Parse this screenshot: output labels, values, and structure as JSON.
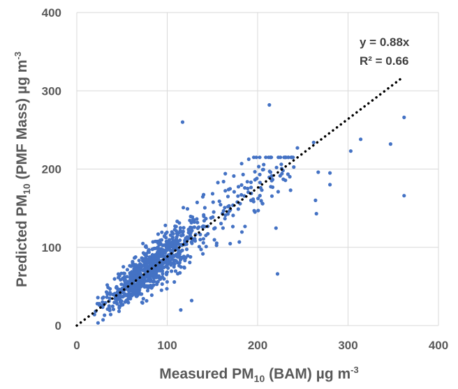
{
  "chart_data": {
    "type": "scatter",
    "xlabel": {
      "main": "Measured PM",
      "sub": "10",
      "rest": " (BAM) µg m",
      "sup": "-3"
    },
    "ylabel": {
      "main": "Predicted PM",
      "sub": "10",
      "rest": " (PMF Mass) µg m",
      "sup": "-3"
    },
    "xlim": [
      0,
      400
    ],
    "ylim": [
      0,
      400
    ],
    "x_ticks": [
      "0",
      "100",
      "200",
      "300",
      "400"
    ],
    "y_ticks": [
      "0",
      "100",
      "200",
      "300",
      "400"
    ],
    "grid": true,
    "legend": "none",
    "trendline": {
      "slope": 0.88,
      "x_range": [
        0,
        360
      ],
      "style": "dotted"
    },
    "annotations": {
      "equation": "y = 0.88x",
      "r2": "R² = 0.66"
    },
    "marker_color": "#4472c4",
    "trend_color": "#000000",
    "grid_color": "#d9d9d9",
    "outliers": [
      [
        117,
        260
      ],
      [
        213,
        282
      ],
      [
        362,
        266
      ],
      [
        314,
        238
      ],
      [
        347,
        232
      ],
      [
        303,
        223
      ],
      [
        362,
        166
      ],
      [
        264,
        160
      ],
      [
        265,
        143
      ],
      [
        222,
        66
      ],
      [
        115,
        20
      ],
      [
        127,
        32
      ],
      [
        244,
        227
      ],
      [
        262,
        234
      ],
      [
        280,
        195
      ],
      [
        280,
        180
      ],
      [
        267,
        196
      ],
      [
        228,
        198
      ]
    ],
    "cloud": {
      "n": 950,
      "x_center": 80,
      "x_spread": 32,
      "x_min": 0,
      "x_max": 240,
      "y_slope": 0.92,
      "y_spread": 20,
      "y_min": 3,
      "y_max": 215,
      "seed": 7
    }
  }
}
